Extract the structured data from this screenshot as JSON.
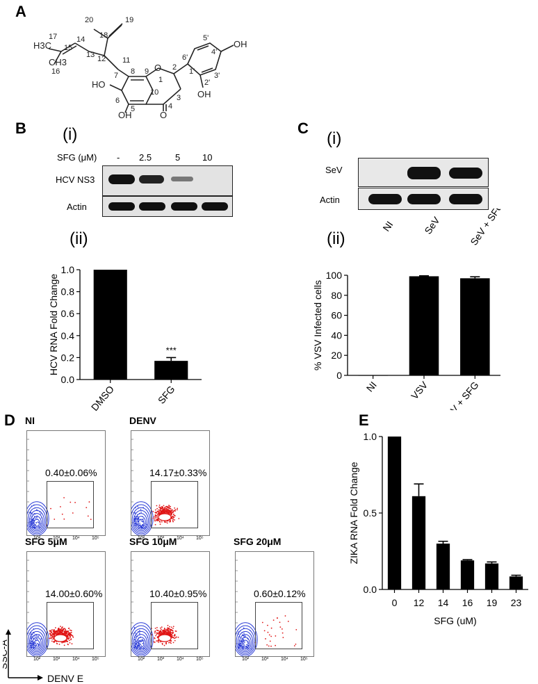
{
  "panels": {
    "A": "A",
    "B": "B",
    "C": "C",
    "D": "D",
    "E": "E"
  },
  "structure": {
    "atoms": [
      "20",
      "19",
      "18",
      "17",
      "H3C",
      "15",
      "14",
      "13",
      "12",
      "11",
      "16",
      "CH3",
      "HO",
      "7",
      "8",
      "9",
      "O",
      "1",
      "2",
      "6'",
      "5'",
      "4'",
      "OH",
      "1'",
      "3'",
      "2'",
      "OH",
      "10",
      "3",
      "6",
      "5",
      "4",
      "O",
      "OH"
    ]
  },
  "panel_b": {
    "sub_i": "(i)",
    "sub_ii": "(ii)",
    "blot": {
      "conc_label": "SFG (μM)",
      "concentrations": [
        "-",
        "2.5",
        "5",
        "10"
      ],
      "rows": [
        "HCV NS3",
        "Actin"
      ]
    }
  },
  "panel_c": {
    "sub_i": "(i)",
    "sub_ii": "(ii)",
    "blot": {
      "rows": [
        "SeV",
        "Actin"
      ],
      "lanes": [
        "NI",
        "SeV",
        "SeV + SFG"
      ]
    }
  },
  "panel_d": {
    "plots": [
      {
        "title": "NI",
        "pct": "0.40±0.06%"
      },
      {
        "title": "DENV",
        "pct": "14.17±0.33%"
      },
      {
        "title": "SFG 5μM",
        "pct": "14.00±0.60%"
      },
      {
        "title": "SFG 10μM",
        "pct": "10.40±0.95%"
      },
      {
        "title": "SFG 20μM",
        "pct": "0.60±0.12%"
      }
    ],
    "y_axis": "SSC-A",
    "x_axis": "DENV E",
    "x_ticks": [
      "10²",
      "10³",
      "10⁴",
      "10⁵"
    ],
    "x_tick_values": [
      100,
      1000,
      10000,
      100000
    ]
  },
  "chart_data": [
    {
      "type": "bar",
      "panel": "B(ii)",
      "categories": [
        "DMSO",
        "SFG"
      ],
      "values": [
        1.0,
        0.17
      ],
      "errors": [
        0.0,
        0.03
      ],
      "annotation": "***",
      "ylabel": "HCV RNA Fold  Change",
      "ylim": [
        0,
        1.0
      ],
      "yticks": [
        "0.0",
        "0.2",
        "0.4",
        "0.6",
        "0.8",
        "1.0"
      ],
      "ytick_values": [
        0,
        0.2,
        0.4,
        0.6,
        0.8,
        1.0
      ]
    },
    {
      "type": "bar",
      "panel": "C(ii)",
      "categories": [
        "NI",
        "VSV",
        "VSV + SFG"
      ],
      "values": [
        0.3,
        99,
        97
      ],
      "errors": [
        0,
        0.5,
        1.5
      ],
      "ylabel": "% VSV Infected cells",
      "ylim": [
        0,
        100
      ],
      "yticks": [
        "0",
        "20",
        "40",
        "60",
        "80",
        "100"
      ],
      "ytick_values": [
        0,
        20,
        40,
        60,
        80,
        100
      ]
    },
    {
      "type": "bar",
      "panel": "E",
      "categories": [
        "0",
        "12",
        "14",
        "16",
        "19",
        "23"
      ],
      "values": [
        1.0,
        0.61,
        0.3,
        0.19,
        0.17,
        0.085
      ],
      "errors": [
        0.0,
        0.08,
        0.015,
        0.005,
        0.01,
        0.008
      ],
      "xlabel": "SFG (uM)",
      "ylabel": "ZIKA RNA Fold Change",
      "ylim": [
        0,
        1.0
      ],
      "yticks": [
        "0.0",
        "0.5",
        "1.0"
      ],
      "ytick_values": [
        0,
        0.5,
        1.0
      ]
    }
  ]
}
